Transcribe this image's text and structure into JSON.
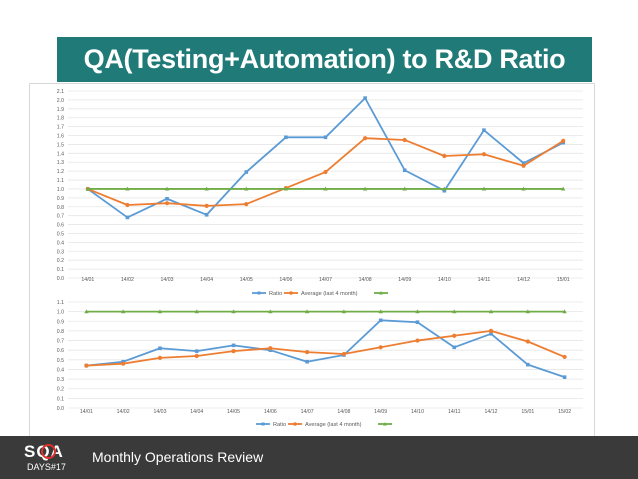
{
  "title": "QA(Testing+Automation) to R&D Ratio",
  "footer": {
    "logo_text": "SQA",
    "logo_sub": "DAYS#17",
    "label": "Monthly Operations Review"
  },
  "colors": {
    "banner": "#1f7a78",
    "ratio": "#5b9bd5",
    "average": "#ed7d31",
    "third": "#70ad47",
    "footer": "#3a3a3a"
  },
  "chart_data": [
    {
      "type": "line",
      "categories": [
        "14/01",
        "14/02",
        "14/03",
        "14/04",
        "14/05",
        "14/06",
        "14/07",
        "14/08",
        "14/09",
        "14/10",
        "14/11",
        "14/12",
        "15/01"
      ],
      "ylim": [
        0,
        2.1
      ],
      "yticks": [
        "0.0",
        "0.1",
        "0.2",
        "0.3",
        "0.4",
        "0.5",
        "0.6",
        "0.7",
        "0.8",
        "0.9",
        "1.0",
        "1.1",
        "1.2",
        "1.3",
        "1.4",
        "1.5",
        "1.6",
        "1.7",
        "1.8",
        "1.9",
        "2.0",
        "2.1"
      ],
      "grid": true,
      "legend_position": "bottom",
      "series": [
        {
          "name": "Ratio",
          "values": [
            1.0,
            0.68,
            0.89,
            0.71,
            1.19,
            1.58,
            1.58,
            2.02,
            1.21,
            0.98,
            1.66,
            1.29,
            1.52
          ]
        },
        {
          "name": "Average (last 4 month)",
          "values": [
            1.0,
            0.82,
            0.84,
            0.81,
            0.83,
            1.01,
            1.19,
            1.57,
            1.55,
            1.37,
            1.39,
            1.26,
            1.54
          ]
        },
        {
          "name": "",
          "values": [
            1.0,
            1.0,
            1.0,
            1.0,
            1.0,
            1.0,
            1.0,
            1.0,
            1.0,
            1.0,
            1.0,
            1.0,
            1.0
          ]
        }
      ]
    },
    {
      "type": "line",
      "categories": [
        "14/01",
        "14/02",
        "14/03",
        "14/04",
        "14/05",
        "14/06",
        "14/07",
        "14/08",
        "14/09",
        "14/10",
        "14/11",
        "14/12",
        "15/01",
        "15/02"
      ],
      "ylim": [
        0,
        1.1
      ],
      "yticks": [
        "0.0",
        "0.1",
        "0.2",
        "0.3",
        "0.4",
        "0.5",
        "0.6",
        "0.7",
        "0.8",
        "0.9",
        "1.0",
        "1.1"
      ],
      "grid": true,
      "legend_position": "bottom",
      "series": [
        {
          "name": "Ratio",
          "values": [
            0.44,
            0.48,
            0.62,
            0.59,
            0.65,
            0.6,
            0.48,
            0.55,
            0.91,
            0.89,
            0.63,
            0.77,
            0.45,
            0.32
          ]
        },
        {
          "name": "Average (last 4 month)",
          "values": [
            0.44,
            0.46,
            0.52,
            0.54,
            0.59,
            0.62,
            0.58,
            0.56,
            0.63,
            0.7,
            0.75,
            0.8,
            0.69,
            0.53
          ]
        },
        {
          "name": "",
          "values": [
            1.0,
            1.0,
            1.0,
            1.0,
            1.0,
            1.0,
            1.0,
            1.0,
            1.0,
            1.0,
            1.0,
            1.0,
            1.0,
            1.0
          ]
        }
      ]
    }
  ]
}
